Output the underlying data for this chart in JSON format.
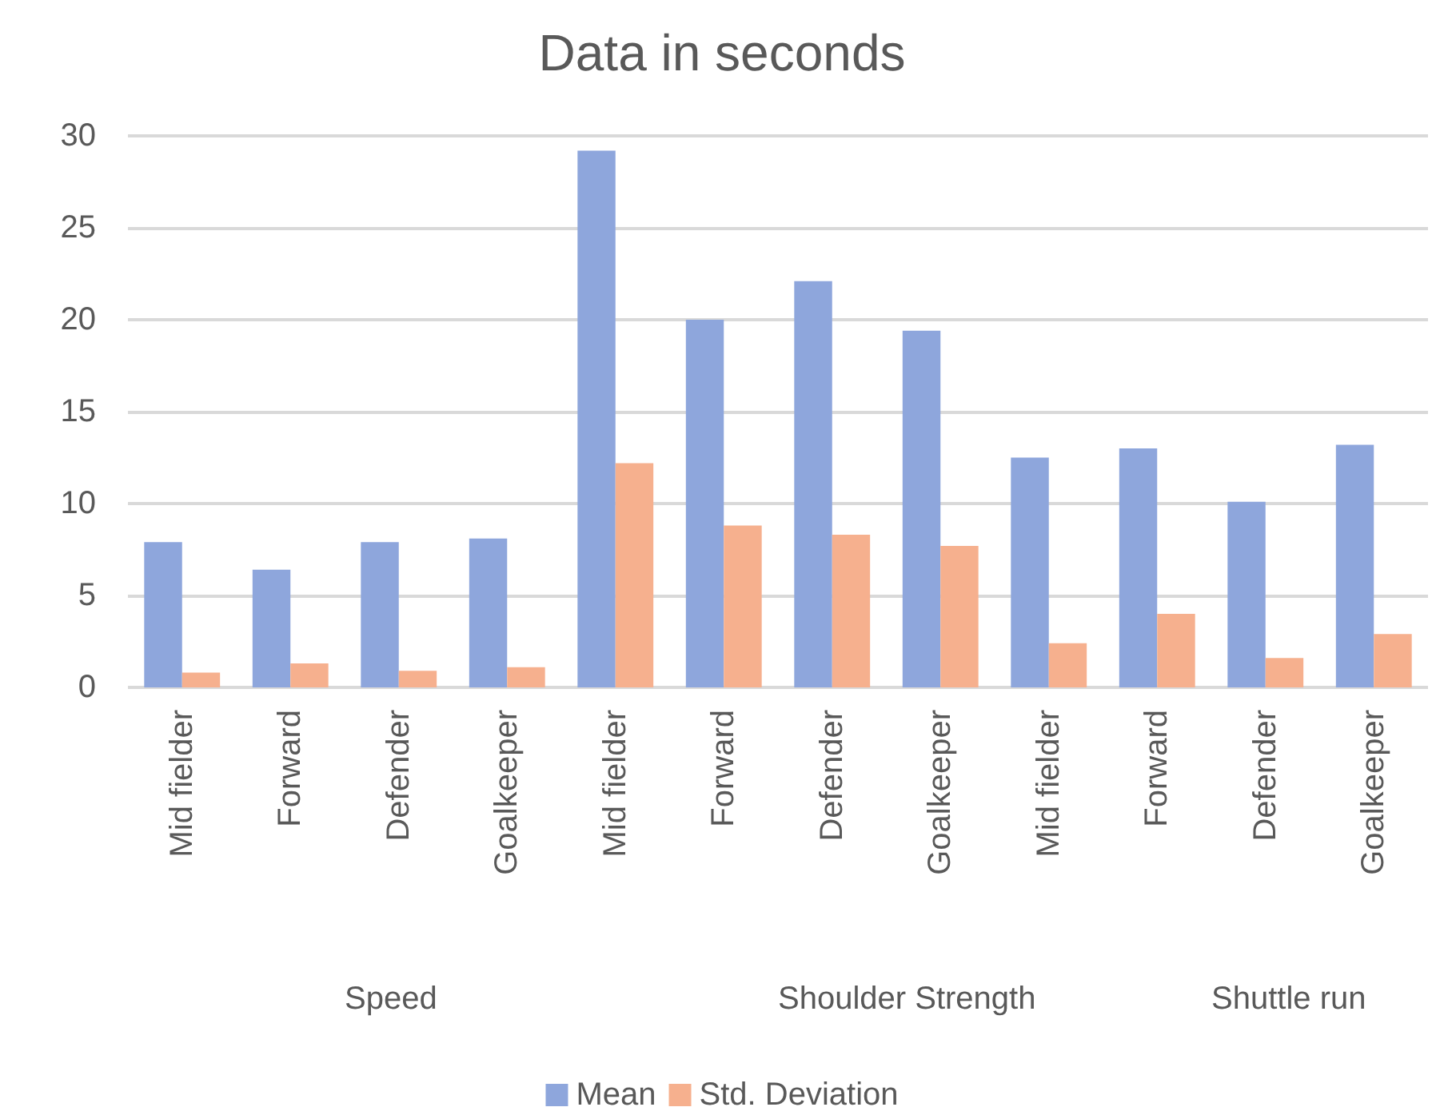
{
  "chart_data": {
    "type": "bar",
    "title": "Data in seconds",
    "categories": [
      "Mid fielder",
      "Forward",
      "Defender",
      "Goalkeeper",
      "Mid fielder",
      "Forward",
      "Defender",
      "Goalkeeper",
      "Mid fielder",
      "Forward",
      "Defender",
      "Goalkeeper"
    ],
    "series": [
      {
        "name": "Mean",
        "color": "#8ea6dc",
        "values": [
          7.9,
          6.4,
          7.9,
          8.1,
          29.2,
          20.0,
          22.1,
          19.4,
          12.5,
          13.0,
          10.1,
          13.2
        ]
      },
      {
        "name": "Std. Deviation",
        "color": "#f6b08e",
        "values": [
          0.8,
          1.3,
          0.9,
          1.1,
          12.2,
          8.8,
          8.3,
          7.7,
          2.4,
          4.0,
          1.6,
          2.9
        ]
      }
    ],
    "annotations": [
      "Speed",
      "Shoulder Strength",
      "Shuttle run"
    ],
    "ylim": [
      0,
      30
    ],
    "yticks": [
      0,
      5,
      10,
      15,
      20,
      25,
      30
    ],
    "grid": "y",
    "legend": "bottom"
  }
}
